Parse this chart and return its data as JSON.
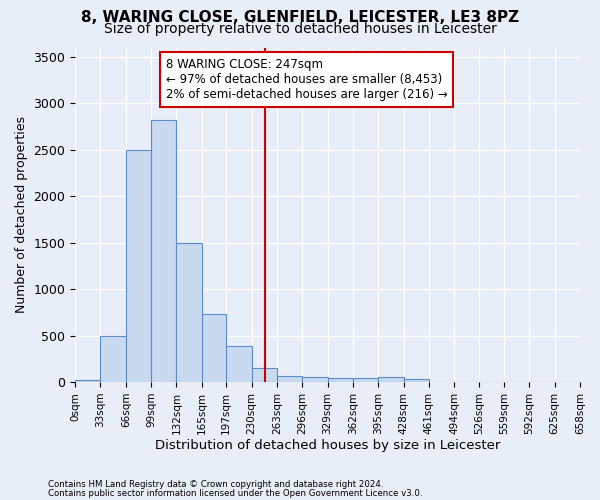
{
  "title": "8, WARING CLOSE, GLENFIELD, LEICESTER, LE3 8PZ",
  "subtitle": "Size of property relative to detached houses in Leicester",
  "xlabel": "Distribution of detached houses by size in Leicester",
  "ylabel": "Number of detached properties",
  "footer_line1": "Contains HM Land Registry data © Crown copyright and database right 2024.",
  "footer_line2": "Contains public sector information licensed under the Open Government Licence v3.0.",
  "bin_edges": [
    0,
    33,
    66,
    99,
    132,
    165,
    197,
    230,
    263,
    296,
    329,
    362,
    395,
    428,
    461,
    494,
    526,
    559,
    592,
    625,
    658
  ],
  "bar_heights": [
    20,
    500,
    2500,
    2820,
    1500,
    730,
    390,
    155,
    70,
    55,
    45,
    40,
    50,
    30,
    0,
    0,
    0,
    0,
    0,
    0
  ],
  "bar_color": "#c8d9f0",
  "bar_edge_color": "#5b8dc8",
  "vline_x": 247,
  "vline_color": "#cc0000",
  "annotation_text": "8 WARING CLOSE: 247sqm\n← 97% of detached houses are smaller (8,453)\n2% of semi-detached houses are larger (216) →",
  "annotation_box_color": "#ffffff",
  "annotation_box_edge": "#cc0000",
  "ylim": [
    0,
    3600
  ],
  "yticks": [
    0,
    500,
    1000,
    1500,
    2000,
    2500,
    3000,
    3500
  ],
  "background_color": "#e8eef8",
  "title_fontsize": 11,
  "subtitle_fontsize": 10,
  "tick_label_fontsize": 7.5,
  "ylabel_fontsize": 9,
  "xlabel_fontsize": 9.5
}
